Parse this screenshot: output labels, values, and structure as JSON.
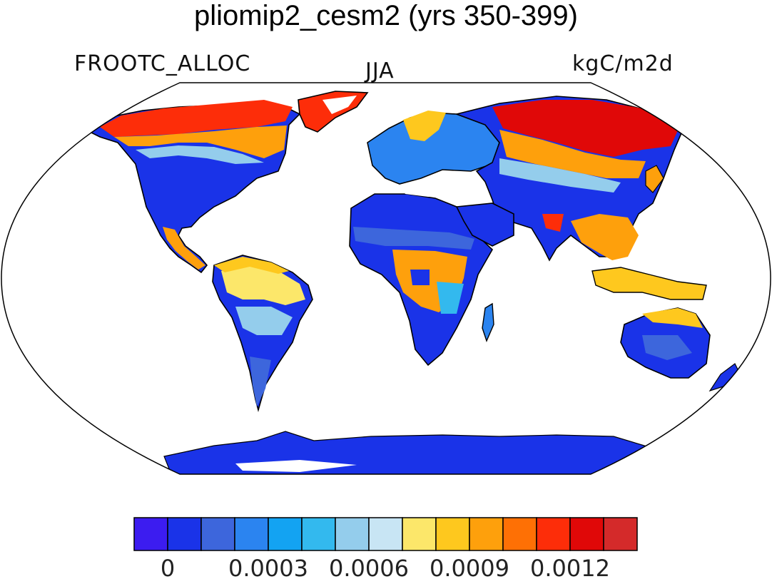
{
  "title": "pliomip2_cesm2 (yrs 350-399)",
  "variable": "FROOTC_ALLOC",
  "season": "JJA",
  "units": "kgC/m2d",
  "colorbar": {
    "colors": [
      "#3c1cf0",
      "#1a33e8",
      "#3d66dc",
      "#2b84f0",
      "#13a3f2",
      "#33b9ee",
      "#94cdec",
      "#c8e5f4",
      "#fce76a",
      "#fec81e",
      "#fea00c",
      "#fe7005",
      "#fd2d09",
      "#e00808",
      "#d42a2a"
    ],
    "tick_labels": [
      "0",
      "0.0003",
      "0.0006",
      "0.0009",
      "0.0012"
    ]
  }
}
